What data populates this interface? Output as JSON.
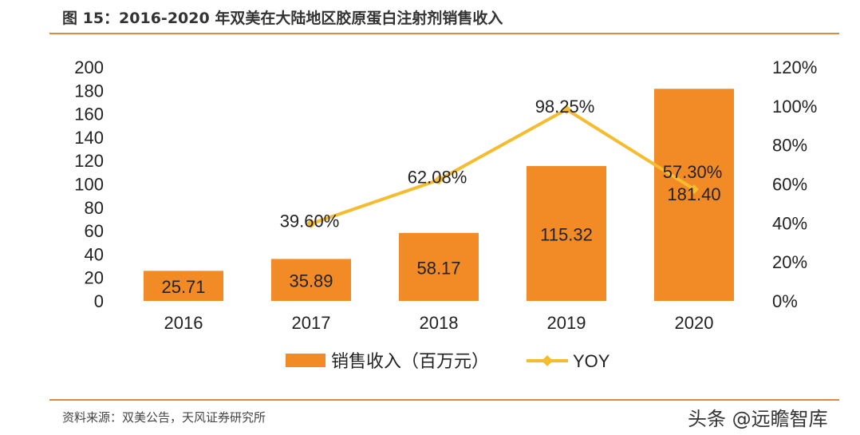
{
  "title": "图 15：2016-2020 年双美在大陆地区胶原蛋白注射剂销售收入",
  "source": "资料来源：双美公告，天风证券研究所",
  "watermark": "头条 @远瞻智库",
  "colors": {
    "bar": "#f28a26",
    "line": "#f6bc2f",
    "rule": "#e0893a"
  },
  "chart_data": {
    "type": "bar+line",
    "categories": [
      "2016",
      "2017",
      "2018",
      "2019",
      "2020"
    ],
    "series": [
      {
        "name": "销售收入（百万元）",
        "type": "bar",
        "axis": "left",
        "values": [
          25.71,
          35.89,
          58.17,
          115.32,
          181.4
        ],
        "labels": [
          "25.71",
          "35.89",
          "58.17",
          "115.32",
          "181.40"
        ]
      },
      {
        "name": "YOY",
        "type": "line",
        "axis": "right",
        "values": [
          null,
          39.6,
          62.08,
          98.25,
          57.3
        ],
        "labels": [
          "",
          "39.60%",
          "62.08%",
          "98.25%",
          "57.30%"
        ]
      }
    ],
    "ylim_left": [
      0,
      200
    ],
    "yticks_left": [
      "0",
      "20",
      "40",
      "60",
      "80",
      "100",
      "120",
      "140",
      "160",
      "180",
      "200"
    ],
    "ylim_right": [
      0,
      120
    ],
    "yticks_right": [
      "0%",
      "20%",
      "40%",
      "60%",
      "80%",
      "100%",
      "120%"
    ],
    "grid": false,
    "legend": "bottom"
  }
}
